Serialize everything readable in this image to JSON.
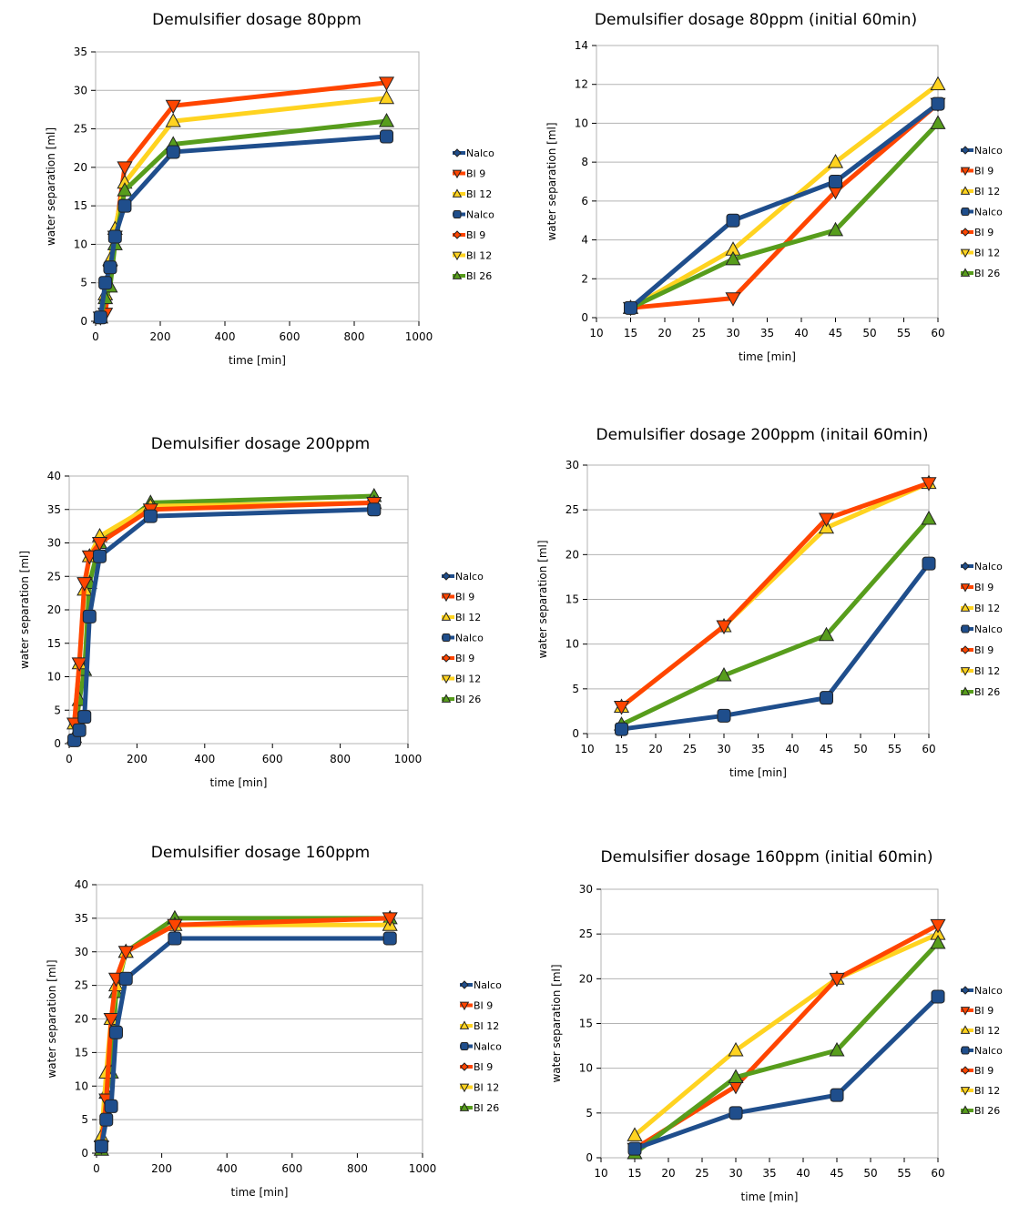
{
  "colors": {
    "Nalco": "#1f4e8c",
    "BI 9": "#ff4500",
    "BI 12": "#ffd320",
    "BI 26": "#579d1c"
  },
  "chart_data": [
    {
      "type": "line",
      "title": "Demulsifier dosage 80ppm",
      "xlabel": "time [min]",
      "ylabel": "water separation [ml]",
      "xlim": [
        0,
        1000
      ],
      "ylim": [
        0,
        35
      ],
      "xticks": [
        0,
        200,
        400,
        600,
        800,
        1000
      ],
      "yticks": [
        0,
        5,
        10,
        15,
        20,
        25,
        30,
        35
      ],
      "x": [
        15,
        30,
        45,
        60,
        90,
        240,
        900
      ],
      "legend": [
        "Nalco",
        "BI 9",
        "BI 12",
        "Nalco",
        "BI 9",
        "BI 12",
        "BI 26"
      ],
      "series": [
        {
          "name": "BI 9",
          "marker": "tri-down",
          "values": [
            0.5,
            1.0,
            6.5,
            11,
            20,
            28,
            31
          ]
        },
        {
          "name": "BI 12",
          "marker": "tri-up",
          "values": [
            0.5,
            3.5,
            8,
            12,
            18,
            26,
            29
          ]
        },
        {
          "name": "BI 26",
          "marker": "tri-up",
          "values": [
            0.5,
            3,
            4.5,
            10,
            17,
            23,
            26
          ]
        },
        {
          "name": "Nalco",
          "marker": "rect",
          "values": [
            0.5,
            5,
            7,
            11,
            15,
            22,
            24
          ]
        }
      ]
    },
    {
      "type": "line",
      "title": "Demulsifier dosage 80ppm (initial 60min)",
      "xlabel": "time [min]",
      "ylabel": "water separation [ml]",
      "xlim": [
        10,
        60
      ],
      "ylim": [
        0,
        14
      ],
      "xticks": [
        10,
        15,
        20,
        25,
        30,
        35,
        40,
        45,
        50,
        55,
        60
      ],
      "yticks": [
        0,
        2,
        4,
        6,
        8,
        10,
        12,
        14
      ],
      "x": [
        15,
        30,
        45,
        60
      ],
      "legend": [
        "Nalco",
        "BI 9",
        "BI 12",
        "Nalco",
        "BI 9",
        "BI 12",
        "BI 26"
      ],
      "series": [
        {
          "name": "BI 9",
          "marker": "tri-down",
          "values": [
            0.5,
            1.0,
            6.5,
            11
          ]
        },
        {
          "name": "BI 12",
          "marker": "tri-up",
          "values": [
            0.5,
            3.5,
            8,
            12
          ]
        },
        {
          "name": "BI 26",
          "marker": "tri-up",
          "values": [
            0.5,
            3,
            4.5,
            10
          ]
        },
        {
          "name": "Nalco",
          "marker": "rect",
          "values": [
            0.5,
            5,
            7,
            11
          ]
        }
      ]
    },
    {
      "type": "line",
      "title": "Demulsifier dosage 200ppm",
      "xlabel": "time [min]",
      "ylabel": "water separation [ml]",
      "xlim": [
        0,
        1000
      ],
      "ylim": [
        0,
        40
      ],
      "xticks": [
        0,
        200,
        400,
        600,
        800,
        1000
      ],
      "yticks": [
        0,
        5,
        10,
        15,
        20,
        25,
        30,
        35,
        40
      ],
      "x": [
        15,
        30,
        45,
        60,
        90,
        240,
        900
      ],
      "legend": [
        "Nalco",
        "BI 9",
        "BI 12",
        "Nalco",
        "BI 9",
        "BI 12",
        "BI 26"
      ],
      "series": [
        {
          "name": "BI 26",
          "marker": "tri-up",
          "values": [
            1,
            6.5,
            11,
            24,
            30,
            36,
            37
          ]
        },
        {
          "name": "BI 12",
          "marker": "tri-up",
          "values": [
            3,
            12,
            23,
            28,
            31,
            35.5,
            36
          ]
        },
        {
          "name": "BI 9",
          "marker": "tri-down",
          "values": [
            3,
            12,
            24,
            28,
            30,
            35,
            36
          ]
        },
        {
          "name": "Nalco",
          "marker": "rect",
          "values": [
            0.5,
            2,
            4,
            19,
            28,
            34,
            35
          ]
        }
      ]
    },
    {
      "type": "line",
      "title": "Demulsifier dosage 200ppm (initail 60min)",
      "xlabel": "time [min]",
      "ylabel": "water separation [ml]",
      "xlim": [
        10,
        60
      ],
      "ylim": [
        0,
        30
      ],
      "xticks": [
        10,
        15,
        20,
        25,
        30,
        35,
        40,
        45,
        50,
        55,
        60
      ],
      "yticks": [
        0,
        5,
        10,
        15,
        20,
        25,
        30
      ],
      "x": [
        15,
        30,
        45,
        60
      ],
      "legend": [
        "Nalco",
        "BI 9",
        "BI 12",
        "Nalco",
        "BI 9",
        "BI 12",
        "BI 26"
      ],
      "series": [
        {
          "name": "BI 12",
          "marker": "tri-up",
          "values": [
            3,
            12,
            23,
            28
          ]
        },
        {
          "name": "BI 9",
          "marker": "tri-down",
          "values": [
            3,
            12,
            24,
            28
          ]
        },
        {
          "name": "BI 26",
          "marker": "tri-up",
          "values": [
            1,
            6.5,
            11,
            24
          ]
        },
        {
          "name": "Nalco",
          "marker": "rect",
          "values": [
            0.5,
            2,
            4,
            19
          ]
        }
      ]
    },
    {
      "type": "line",
      "title": "Demulsifier dosage 160ppm",
      "xlabel": "time [min]",
      "ylabel": "water separation [ml]",
      "xlim": [
        0,
        1000
      ],
      "ylim": [
        0,
        40
      ],
      "xticks": [
        0,
        200,
        400,
        600,
        800,
        1000
      ],
      "yticks": [
        0,
        5,
        10,
        15,
        20,
        25,
        30,
        35,
        40
      ],
      "x": [
        15,
        30,
        45,
        60,
        90,
        240,
        900
      ],
      "legend": [
        "Nalco",
        "BI 9",
        "BI 12",
        "Nalco",
        "BI 9",
        "BI 12",
        "BI 26"
      ],
      "series": [
        {
          "name": "BI 26",
          "marker": "tri-up",
          "values": [
            0.5,
            9,
            12,
            24,
            30,
            35,
            35
          ]
        },
        {
          "name": "BI 12",
          "marker": "tri-up",
          "values": [
            2.5,
            12,
            20,
            25,
            30,
            34,
            34
          ]
        },
        {
          "name": "BI 9",
          "marker": "tri-down",
          "values": [
            1,
            8,
            20,
            26,
            30,
            34,
            35
          ]
        },
        {
          "name": "Nalco",
          "marker": "rect",
          "values": [
            1,
            5,
            7,
            18,
            26,
            32,
            32
          ]
        }
      ]
    },
    {
      "type": "line",
      "title": "Demulsifier dosage 160ppm (initial 60min)",
      "xlabel": "time [min]",
      "ylabel": "water separation [ml]",
      "xlim": [
        10,
        60
      ],
      "ylim": [
        0,
        30
      ],
      "xticks": [
        10,
        15,
        20,
        25,
        30,
        35,
        40,
        45,
        50,
        55,
        60
      ],
      "yticks": [
        0,
        5,
        10,
        15,
        20,
        25,
        30
      ],
      "x": [
        15,
        30,
        45,
        60
      ],
      "legend": [
        "Nalco",
        "BI 9",
        "BI 12",
        "Nalco",
        "BI 9",
        "BI 12",
        "BI 26"
      ],
      "series": [
        {
          "name": "BI 12",
          "marker": "tri-up",
          "values": [
            2.5,
            12,
            20,
            25
          ]
        },
        {
          "name": "BI 9",
          "marker": "tri-down",
          "values": [
            1,
            8,
            20,
            26
          ]
        },
        {
          "name": "BI 26",
          "marker": "tri-up",
          "values": [
            0.5,
            9,
            12,
            24
          ]
        },
        {
          "name": "Nalco",
          "marker": "rect",
          "values": [
            1,
            5,
            7,
            18
          ]
        }
      ]
    }
  ]
}
